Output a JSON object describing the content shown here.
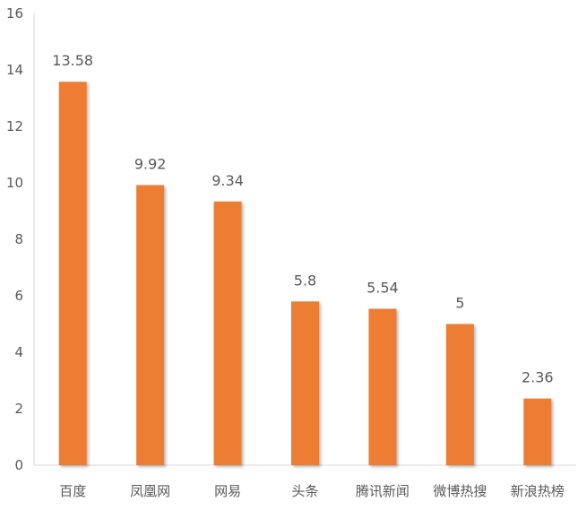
{
  "chart_data": {
    "type": "bar",
    "title": "",
    "xlabel": "",
    "ylabel": "",
    "categories": [
      "百度",
      "凤凰网",
      "网易",
      "头条",
      "腾讯新闻",
      "微博热搜",
      "新浪热榜"
    ],
    "values": [
      13.58,
      9.92,
      9.34,
      5.8,
      5.54,
      5,
      2.36
    ],
    "data_labels": [
      "13.58",
      "9.92",
      "9.34",
      "5.8",
      "5.54",
      "5",
      "2.36"
    ],
    "ylim": [
      0,
      16
    ],
    "yticks": [
      0,
      2,
      4,
      6,
      8,
      10,
      12,
      14,
      16
    ],
    "ytick_labels": [
      "0",
      "2",
      "4",
      "6",
      "8",
      "10",
      "12",
      "14",
      "16"
    ],
    "bar_color": "#ED7D31",
    "grid": false,
    "legend": "none"
  }
}
